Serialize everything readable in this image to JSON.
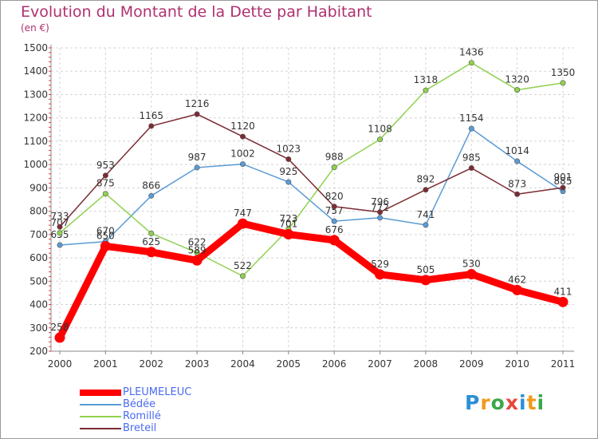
{
  "chart_data": {
    "type": "line",
    "title": "Evolution du Montant de la Dette par Habitant",
    "subtitle": "(en €)",
    "categories": [
      "2000",
      "2001",
      "2002",
      "2003",
      "2004",
      "2005",
      "2006",
      "2007",
      "2008",
      "2009",
      "2010",
      "2011"
    ],
    "ylim": [
      200,
      1500
    ],
    "yticks": [
      "200",
      "300",
      "400",
      "500",
      "600",
      "700",
      "800",
      "900",
      "1000",
      "1100",
      "1200",
      "1300",
      "1400",
      "1500"
    ],
    "grid": true,
    "legend_position": "bottom-left",
    "series": [
      {
        "name": "Bédée",
        "color": "#5b9bd5",
        "values": [
          655,
          670,
          866,
          987,
          1002,
          925,
          757,
          772,
          741,
          1154,
          1014,
          885
        ]
      },
      {
        "name": "Romillé",
        "color": "#8fd14f",
        "values": [
          707,
          875,
          705,
          622,
          522,
          723,
          988,
          1108,
          1318,
          1436,
          1320,
          1350
        ]
      },
      {
        "name": "Breteil",
        "color": "#7b2b33",
        "values": [
          733,
          953,
          1165,
          1216,
          1120,
          1023,
          820,
          796,
          892,
          985,
          873,
          901
        ]
      },
      {
        "name": "PLEUMELEUC",
        "color": "#ff0000",
        "values": [
          258,
          650,
          625,
          589,
          747,
          701,
          676,
          529,
          505,
          530,
          462,
          411
        ]
      }
    ],
    "data_labels": {
      "Bédée": [
        "655",
        "670",
        "866",
        "987",
        "1002",
        "925",
        "757",
        "772",
        "741",
        "1154",
        "1014",
        "885"
      ],
      "Romillé": [
        "707",
        "875",
        "",
        "622",
        "522",
        "723",
        "988",
        "1108",
        "1318",
        "1436",
        "1320",
        "1350"
      ],
      "Breteil": [
        "733",
        "953",
        "1165",
        "1216",
        "1120",
        "1023",
        "820",
        "796",
        "892",
        "985",
        "873",
        "901"
      ],
      "PLEUMELEUC": [
        "258",
        "650",
        "625",
        "589",
        "747",
        "701",
        "676",
        "529",
        "505",
        "530",
        "462",
        "411"
      ]
    }
  },
  "legend": [
    {
      "label": "PLEUMELEUC",
      "color": "#ff0000",
      "thick": true
    },
    {
      "label": "Bédée",
      "color": "#5b9bd5",
      "thick": false
    },
    {
      "label": "Romillé",
      "color": "#8fd14f",
      "thick": false
    },
    {
      "label": "Breteil",
      "color": "#7b2b33",
      "thick": false
    }
  ],
  "brand": {
    "letters": [
      "P",
      "r",
      "o",
      "x",
      "i",
      "t",
      "i"
    ],
    "colors": [
      "#2a8fd8",
      "#f29a1e",
      "#3aa84a",
      "#e8473a",
      "#2a8fd8",
      "#f29a1e",
      "#3aa84a"
    ]
  }
}
